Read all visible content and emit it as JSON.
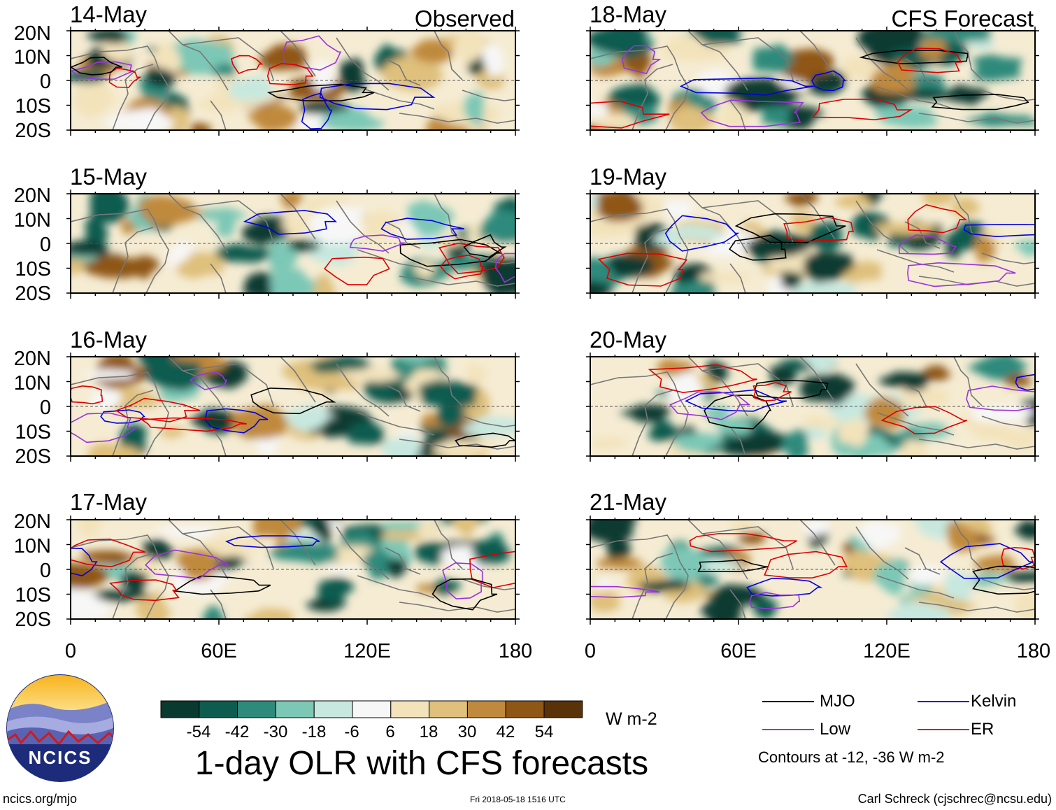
{
  "title": "1-day OLR with CFS forecasts",
  "observed_label": "Observed",
  "forecast_label": "CFS Forecast",
  "panels_left": [
    {
      "date": "14-May"
    },
    {
      "date": "15-May"
    },
    {
      "date": "16-May"
    },
    {
      "date": "17-May"
    }
  ],
  "panels_right": [
    {
      "date": "18-May"
    },
    {
      "date": "19-May"
    },
    {
      "date": "20-May"
    },
    {
      "date": "21-May"
    }
  ],
  "lat_labels": [
    "20N",
    "10N",
    "0",
    "10S",
    "20S"
  ],
  "lon_labels": [
    "0",
    "60E",
    "120E",
    "180"
  ],
  "colorbar": {
    "units": "W m-2",
    "tick_labels": [
      "-54",
      "-42",
      "-30",
      "-18",
      "-6",
      "6",
      "18",
      "30",
      "42",
      "54"
    ],
    "colors": [
      "#083a30",
      "#0e5c50",
      "#2f8a7c",
      "#7cc7b6",
      "#c7e8df",
      "#f7f7f7",
      "#f3e3bb",
      "#dfc07c",
      "#c08a3e",
      "#8f5716",
      "#593209"
    ]
  },
  "legend": [
    {
      "label": "MJO",
      "color": "#000000"
    },
    {
      "label": "Kelvin",
      "color": "#0000dd"
    },
    {
      "label": "Low",
      "color": "#9933dd"
    },
    {
      "label": "ER",
      "color": "#dd0000"
    }
  ],
  "contour_note": "Contours at -12, -36 W m-2",
  "logo_text": "NCICS",
  "footer": {
    "left": "ncics.org/mjo",
    "mid": "Fri 2018-05-18 1516 UTC",
    "right": "Carl Schreck (cjschrec@ncsu.edu)"
  }
}
